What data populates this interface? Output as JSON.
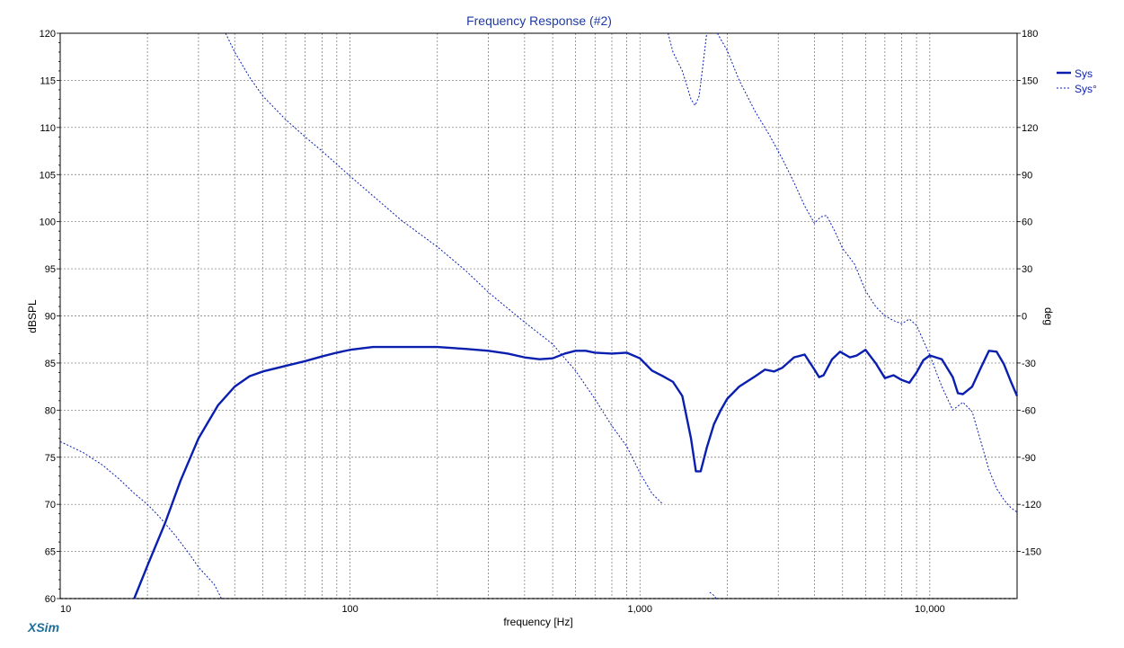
{
  "app": {
    "logo_text": "XSim"
  },
  "colors": {
    "accent": "#0a1faf",
    "text": "#000000",
    "title": "#1d3aa6",
    "grid": "#707070",
    "logo": "#1f6e99"
  },
  "chart_data": {
    "type": "line",
    "title": "Frequency Response (#2)",
    "xlabel": "frequency [Hz]",
    "ylabel": "dBSPL",
    "y2label": "deg",
    "xscale": "log",
    "xlim": [
      10,
      20000
    ],
    "ylim": [
      60,
      120
    ],
    "y2lim": [
      -180,
      180
    ],
    "grid": true,
    "legend_position": "top-right",
    "xticks": [
      {
        "value": 10,
        "label": "10"
      },
      {
        "value": 100,
        "label": "100"
      },
      {
        "value": 1000,
        "label": "1,000"
      },
      {
        "value": 10000,
        "label": "10,000"
      }
    ],
    "yticks": [
      {
        "value": 120,
        "label": "120"
      },
      {
        "value": 115,
        "label": "115"
      },
      {
        "value": 110,
        "label": "110"
      },
      {
        "value": 105,
        "label": "105"
      },
      {
        "value": 100,
        "label": "100"
      },
      {
        "value": 95,
        "label": "95"
      },
      {
        "value": 90,
        "label": "90"
      },
      {
        "value": 85,
        "label": "85"
      },
      {
        "value": 80,
        "label": "80"
      },
      {
        "value": 75,
        "label": "75"
      },
      {
        "value": 70,
        "label": "70"
      },
      {
        "value": 65,
        "label": "65"
      },
      {
        "value": 60,
        "label": "60"
      }
    ],
    "y2ticks": [
      {
        "value": 180,
        "label": "180"
      },
      {
        "value": 150,
        "label": "150"
      },
      {
        "value": 120,
        "label": "120"
      },
      {
        "value": 90,
        "label": "90"
      },
      {
        "value": 60,
        "label": "60"
      },
      {
        "value": 30,
        "label": "30"
      },
      {
        "value": 0,
        "label": "0"
      },
      {
        "value": -30,
        "label": "-30"
      },
      {
        "value": -60,
        "label": "-60"
      },
      {
        "value": -90,
        "label": "-90"
      },
      {
        "value": -120,
        "label": "-120"
      },
      {
        "value": -150,
        "label": "-150"
      }
    ],
    "series": [
      {
        "name": "Sys",
        "axis": "left",
        "style": "solid",
        "color": "#0a1faf",
        "points": [
          [
            18.0,
            60.0
          ],
          [
            20,
            63.5
          ],
          [
            23,
            68.0
          ],
          [
            26,
            72.5
          ],
          [
            30,
            77.0
          ],
          [
            35,
            80.5
          ],
          [
            40,
            82.5
          ],
          [
            45,
            83.6
          ],
          [
            50,
            84.1
          ],
          [
            60,
            84.7
          ],
          [
            70,
            85.2
          ],
          [
            80,
            85.7
          ],
          [
            90,
            86.1
          ],
          [
            100,
            86.4
          ],
          [
            120,
            86.7
          ],
          [
            150,
            86.7
          ],
          [
            200,
            86.7
          ],
          [
            250,
            86.5
          ],
          [
            300,
            86.3
          ],
          [
            350,
            86.0
          ],
          [
            400,
            85.6
          ],
          [
            450,
            85.4
          ],
          [
            500,
            85.5
          ],
          [
            550,
            86.0
          ],
          [
            600,
            86.3
          ],
          [
            650,
            86.3
          ],
          [
            700,
            86.1
          ],
          [
            800,
            86.0
          ],
          [
            900,
            86.1
          ],
          [
            1000,
            85.5
          ],
          [
            1100,
            84.2
          ],
          [
            1200,
            83.6
          ],
          [
            1300,
            83.0
          ],
          [
            1400,
            81.5
          ],
          [
            1500,
            77.0
          ],
          [
            1560,
            73.5
          ],
          [
            1620,
            73.5
          ],
          [
            1700,
            76.0
          ],
          [
            1800,
            78.5
          ],
          [
            1900,
            80.0
          ],
          [
            2000,
            81.2
          ],
          [
            2200,
            82.5
          ],
          [
            2500,
            83.6
          ],
          [
            2700,
            84.3
          ],
          [
            2900,
            84.1
          ],
          [
            3100,
            84.5
          ],
          [
            3400,
            85.6
          ],
          [
            3700,
            85.9
          ],
          [
            4000,
            84.3
          ],
          [
            4150,
            83.5
          ],
          [
            4300,
            83.7
          ],
          [
            4600,
            85.4
          ],
          [
            4900,
            86.2
          ],
          [
            5300,
            85.6
          ],
          [
            5600,
            85.8
          ],
          [
            6000,
            86.4
          ],
          [
            6500,
            85.0
          ],
          [
            7000,
            83.4
          ],
          [
            7500,
            83.7
          ],
          [
            8000,
            83.2
          ],
          [
            8500,
            82.9
          ],
          [
            9000,
            84.0
          ],
          [
            9500,
            85.3
          ],
          [
            10000,
            85.8
          ],
          [
            11000,
            85.4
          ],
          [
            12000,
            83.5
          ],
          [
            12500,
            81.8
          ],
          [
            13000,
            81.7
          ],
          [
            14000,
            82.5
          ],
          [
            15000,
            84.5
          ],
          [
            16000,
            86.3
          ],
          [
            17000,
            86.2
          ],
          [
            18000,
            84.9
          ],
          [
            19000,
            83.1
          ],
          [
            20000,
            81.5
          ]
        ]
      },
      {
        "name": "Sys°",
        "axis": "right",
        "style": "dashed",
        "color": "#0a1faf",
        "segments": [
          [
            [
              10,
              -80
            ],
            [
              12,
              -87
            ],
            [
              14,
              -95
            ],
            [
              16,
              -104
            ],
            [
              18,
              -113
            ],
            [
              20,
              -120
            ],
            [
              22,
              -128
            ],
            [
              25,
              -140
            ],
            [
              28,
              -152
            ],
            [
              30,
              -160
            ],
            [
              34,
              -171
            ],
            [
              36,
              -180
            ]
          ],
          [
            [
              37.2,
              180
            ],
            [
              40,
              168
            ],
            [
              45,
              152
            ],
            [
              50,
              140
            ],
            [
              60,
              125
            ],
            [
              70,
              114
            ],
            [
              80,
              105
            ],
            [
              100,
              89
            ],
            [
              150,
              61
            ],
            [
              200,
              44
            ],
            [
              250,
              29
            ],
            [
              300,
              15
            ],
            [
              400,
              -4
            ],
            [
              500,
              -18
            ],
            [
              600,
              -35
            ],
            [
              700,
              -53
            ],
            [
              800,
              -70
            ],
            [
              900,
              -83
            ],
            [
              1000,
              -100
            ],
            [
              1100,
              -113
            ],
            [
              1200,
              -120
            ]
          ],
          [
            [
              1250,
              180
            ],
            [
              1300,
              168
            ],
            [
              1400,
              156
            ],
            [
              1500,
              138
            ],
            [
              1550,
              134
            ],
            [
              1600,
              140
            ],
            [
              1650,
              160
            ],
            [
              1700,
              180
            ]
          ],
          [
            [
              1740,
              -176
            ],
            [
              1800,
              -178
            ],
            [
              1830,
              -180
            ]
          ],
          [
            [
              1850,
              180
            ],
            [
              2000,
              169
            ],
            [
              2200,
              150
            ],
            [
              2500,
              130
            ],
            [
              2800,
              115
            ],
            [
              3100,
              100
            ],
            [
              3400,
              85
            ],
            [
              3700,
              70
            ],
            [
              4000,
              59
            ],
            [
              4200,
              63
            ],
            [
              4400,
              64
            ],
            [
              4700,
              54
            ],
            [
              5000,
              43
            ],
            [
              5500,
              33
            ],
            [
              6000,
              16
            ],
            [
              6500,
              6
            ],
            [
              7000,
              0
            ],
            [
              7500,
              -3
            ],
            [
              8000,
              -5
            ],
            [
              8500,
              -2
            ],
            [
              9000,
              -6
            ],
            [
              10000,
              -25
            ],
            [
              11000,
              -45
            ],
            [
              12000,
              -60
            ],
            [
              13000,
              -55
            ],
            [
              14000,
              -61
            ],
            [
              15000,
              -80
            ],
            [
              16000,
              -98
            ],
            [
              17000,
              -110
            ],
            [
              18000,
              -117
            ],
            [
              19000,
              -122
            ],
            [
              20000,
              -125
            ]
          ]
        ]
      }
    ]
  }
}
